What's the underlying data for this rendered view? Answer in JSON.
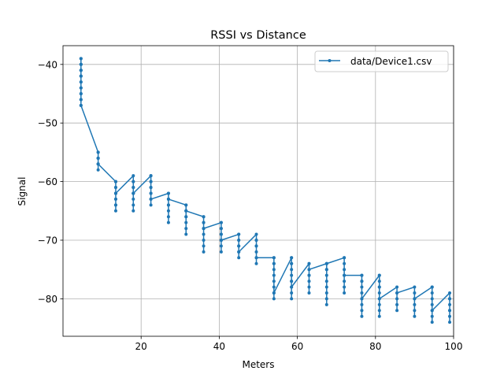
{
  "chart_data": {
    "type": "line",
    "title": "RSSI vs Distance",
    "xlabel": "Meters",
    "ylabel": "Signal",
    "xlim": [
      0,
      100
    ],
    "ylim": [
      -86.4,
      -36.8
    ],
    "xticks": [
      20,
      40,
      60,
      80,
      100
    ],
    "yticks": [
      -80,
      -70,
      -60,
      -50,
      -40
    ],
    "grid": true,
    "legend_position": "top-right",
    "color": "#1f77b4",
    "series": [
      {
        "name": "data/Device1.csv",
        "marker": "dot",
        "x": [
          4.6,
          4.6,
          4.6,
          4.6,
          4.6,
          4.6,
          4.6,
          4.6,
          4.6,
          4.6,
          4.6,
          4.6,
          4.6,
          4.6,
          4.6,
          4.6,
          4.6,
          4.6,
          4.6,
          4.6,
          4.6,
          9.0,
          9.0,
          9.0,
          9.0,
          9.0,
          9.0,
          9.0,
          9.0,
          9.0,
          13.5,
          13.5,
          13.5,
          13.5,
          13.5,
          13.5,
          13.5,
          13.5,
          13.5,
          13.5,
          13.5,
          13.5,
          18.0,
          18.0,
          18.0,
          18.0,
          18.0,
          18.0,
          18.0,
          18.0,
          18.0,
          18.0,
          18.0,
          22.5,
          22.5,
          22.5,
          22.5,
          22.5,
          22.5,
          22.5,
          22.5,
          22.5,
          22.5,
          22.5,
          27.0,
          27.0,
          27.0,
          27.0,
          27.0,
          27.0,
          27.0,
          27.0,
          27.0,
          27.0,
          31.5,
          31.5,
          31.5,
          31.5,
          31.5,
          31.5,
          31.5,
          31.5,
          31.5,
          31.5,
          36.0,
          36.0,
          36.0,
          36.0,
          36.0,
          36.0,
          36.0,
          36.0,
          36.0,
          36.0,
          36.0,
          40.5,
          40.5,
          40.5,
          40.5,
          40.5,
          40.5,
          40.5,
          40.5,
          40.5,
          40.5,
          40.5,
          45.0,
          45.0,
          45.0,
          45.0,
          45.0,
          45.0,
          45.0,
          45.0,
          45.0,
          49.5,
          49.5,
          49.5,
          49.5,
          49.5,
          49.5,
          49.5,
          49.5,
          49.5,
          54.0,
          54.0,
          54.0,
          54.0,
          54.0,
          54.0,
          54.0,
          54.0,
          54.0,
          54.0,
          54.0,
          58.5,
          58.5,
          58.5,
          58.5,
          58.5,
          58.5,
          58.5,
          58.5,
          58.5,
          58.5,
          58.5,
          58.5,
          63.0,
          63.0,
          63.0,
          63.0,
          63.0,
          63.0,
          63.0,
          63.0,
          63.0,
          67.5,
          67.5,
          67.5,
          67.5,
          67.5,
          67.5,
          67.5,
          67.5,
          67.5,
          67.5,
          67.5,
          72.0,
          72.0,
          72.0,
          72.0,
          72.0,
          72.0,
          72.0,
          72.0,
          72.0,
          76.5,
          76.5,
          76.5,
          76.5,
          76.5,
          76.5,
          76.5,
          76.5,
          76.5,
          76.5,
          76.5,
          81.0,
          81.0,
          81.0,
          81.0,
          81.0,
          81.0,
          81.0,
          81.0,
          81.0,
          81.0,
          81.0,
          85.5,
          85.5,
          85.5,
          85.5,
          85.5,
          85.5,
          90.0,
          90.0,
          90.0,
          90.0,
          90.0,
          90.0,
          90.0,
          94.5,
          94.5,
          94.5,
          94.5,
          94.5,
          94.5,
          94.5,
          94.5,
          94.5,
          99.0,
          99.0,
          99.0,
          99.0,
          99.0,
          99.0,
          99.0,
          99.0
        ],
        "y": [
          -39,
          -40,
          -39,
          -41,
          -40,
          -42,
          -43,
          -44,
          -41,
          -45,
          -46,
          -47,
          -45,
          -46,
          -44,
          -43,
          -42,
          -41,
          -40,
          -42,
          -47,
          -55,
          -56,
          -57,
          -55,
          -58,
          -56,
          -57,
          -56,
          -57,
          -60,
          -61,
          -62,
          -63,
          -64,
          -65,
          -60,
          -62,
          -63,
          -64,
          -61,
          -62,
          -59,
          -60,
          -61,
          -62,
          -63,
          -64,
          -65,
          -60,
          -61,
          -62,
          -62,
          -59,
          -60,
          -61,
          -62,
          -63,
          -64,
          -59,
          -60,
          -61,
          -62,
          -63,
          -62,
          -63,
          -64,
          -65,
          -66,
          -67,
          -62,
          -63,
          -64,
          -63,
          -64,
          -65,
          -66,
          -67,
          -68,
          -69,
          -64,
          -65,
          -66,
          -65,
          -66,
          -67,
          -68,
          -69,
          -70,
          -71,
          -72,
          -66,
          -67,
          -68,
          -68,
          -67,
          -68,
          -69,
          -70,
          -71,
          -72,
          -67,
          -68,
          -69,
          -70,
          -70,
          -69,
          -70,
          -71,
          -72,
          -73,
          -69,
          -70,
          -71,
          -72,
          -69,
          -70,
          -71,
          -72,
          -73,
          -74,
          -70,
          -71,
          -73,
          -73,
          -74,
          -75,
          -76,
          -77,
          -78,
          -79,
          -80,
          -73,
          -74,
          -79,
          -73,
          -74,
          -75,
          -76,
          -77,
          -78,
          -79,
          -80,
          -73,
          -74,
          -77,
          -78,
          -74,
          -75,
          -76,
          -77,
          -78,
          -79,
          -74,
          -76,
          -75,
          -74,
          -75,
          -76,
          -77,
          -78,
          -79,
          -80,
          -81,
          -74,
          -75,
          -74,
          -73,
          -74,
          -75,
          -76,
          -77,
          -78,
          -79,
          -73,
          -76,
          -76,
          -77,
          -78,
          -79,
          -80,
          -81,
          -82,
          -83,
          -76,
          -77,
          -80,
          -76,
          -77,
          -78,
          -79,
          -80,
          -81,
          -82,
          -83,
          -76,
          -78,
          -80,
          -78,
          -79,
          -80,
          -81,
          -82,
          -79,
          -78,
          -79,
          -80,
          -81,
          -82,
          -83,
          -80,
          -78,
          -79,
          -80,
          -81,
          -82,
          -83,
          -84,
          -78,
          -82,
          -79,
          -80,
          -81,
          -82,
          -83,
          -84,
          -80,
          -82
        ]
      }
    ]
  }
}
